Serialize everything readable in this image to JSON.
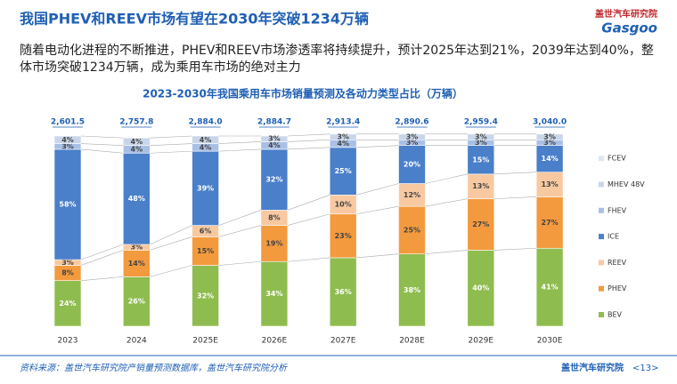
{
  "header": {
    "title": "我国PHEV和REEV市场有望在2030年突破1234万辆",
    "logo_cn": "盖世汽车研究院",
    "logo_en": "Gasgoo"
  },
  "summary": "随着电动化进程的不断推进，PHEV和REEV市场渗透率将持续提升，预计2025年达到21%，2039年达到40%，整体市场突破1234万辆，成为乘用车市场的绝对主力",
  "chart_data": {
    "type": "stacked_bar",
    "title": "2023-2030年我国乘用车市场销量预测及各动力类型占比（万辆）",
    "categories": [
      "2023",
      "2024",
      "2025E",
      "2026E",
      "2027E",
      "2028E",
      "2029E",
      "2030E"
    ],
    "ylim": [
      0,
      100
    ],
    "totals": {
      "values": [
        2601.5,
        2757.8,
        2884.0,
        2884.7,
        2913.4,
        2890.6,
        2959.4,
        3040.0
      ],
      "value_labels": [
        "2,601.5",
        "2,757.8",
        "2,884.0",
        "2,884.7",
        "2,913.4",
        "2,890.6",
        "2,959.4",
        "3,040.0"
      ]
    },
    "series": [
      {
        "name": "BEV",
        "color": "#8fbc4f",
        "values": [
          24,
          26,
          32,
          34,
          36,
          38,
          40,
          41
        ],
        "value_labels": [
          "24%",
          "26%",
          "32%",
          "34%",
          "36%",
          "38%",
          "40%",
          "41%"
        ]
      },
      {
        "name": "PHEV",
        "color": "#f39a3e",
        "values": [
          8,
          14,
          15,
          19,
          23,
          25,
          27,
          27
        ],
        "value_labels": [
          "8%",
          "14%",
          "15%",
          "19%",
          "23%",
          "25%",
          "27%",
          "27%"
        ]
      },
      {
        "name": "REEV",
        "color": "#f8c9a0",
        "values": [
          3,
          3,
          6,
          8,
          10,
          12,
          13,
          13
        ],
        "value_labels": [
          "3%",
          "3%",
          "6%",
          "8%",
          "10%",
          "12%",
          "13%",
          "13%"
        ]
      },
      {
        "name": "ICE",
        "color": "#4a7fc9",
        "values": [
          58,
          48,
          39,
          32,
          25,
          20,
          15,
          14
        ],
        "value_labels": [
          "58%",
          "48%",
          "39%",
          "32%",
          "25%",
          "20%",
          "15%",
          "14%"
        ]
      },
      {
        "name": "FHEV",
        "color": "#a9c0e6",
        "values": [
          3,
          4,
          4,
          4,
          4,
          3,
          3,
          3
        ],
        "value_labels": [
          "3%",
          "4%",
          "4%",
          "4%",
          "4%",
          "3%",
          "3%",
          "3%"
        ]
      },
      {
        "name": "MHEV 48V",
        "color": "#c9d6ea",
        "values": [
          4,
          4,
          4,
          3,
          3,
          3,
          3,
          3
        ],
        "value_labels": [
          "4%",
          "4%",
          "4%",
          "3%",
          "3%",
          "3%",
          "3%",
          "3%"
        ]
      },
      {
        "name": "FCEV",
        "color": "#dde6f2",
        "values": [
          0,
          0,
          0,
          0,
          0,
          0,
          0,
          0
        ]
      }
    ]
  },
  "footer": {
    "source": "资料来源：盖世汽车研究院产销量预测数据库，盖世汽车研究院分析",
    "org": "盖世汽车研究院",
    "page": "<13>"
  }
}
